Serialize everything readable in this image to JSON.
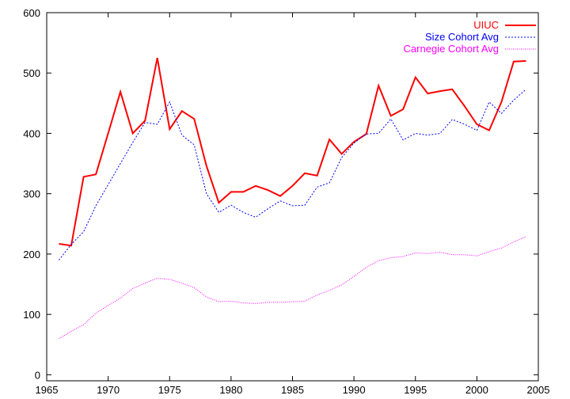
{
  "chart_data": {
    "type": "line",
    "title": "",
    "xlabel": "",
    "ylabel": "",
    "xlim": [
      1965,
      2005
    ],
    "ylim": [
      -10,
      600
    ],
    "xticks": [
      1965,
      1970,
      1975,
      1980,
      1985,
      1990,
      1995,
      2000,
      2005
    ],
    "yticks": [
      0,
      100,
      200,
      300,
      400,
      500,
      600
    ],
    "grid": false,
    "legend_position": "top-right",
    "x": [
      1966,
      1967,
      1968,
      1969,
      1970,
      1971,
      1972,
      1973,
      1974,
      1975,
      1976,
      1977,
      1978,
      1979,
      1980,
      1981,
      1982,
      1983,
      1984,
      1985,
      1986,
      1987,
      1988,
      1989,
      1990,
      1991,
      1992,
      1993,
      1994,
      1995,
      1996,
      1997,
      1998,
      1999,
      2000,
      2001,
      2002,
      2003,
      2004
    ],
    "series": [
      {
        "name": "UIUC",
        "color": "#ff0000",
        "style": "solid",
        "values": [
          217,
          214,
          328,
          332,
          400,
          469,
          400,
          421,
          525,
          407,
          437,
          424,
          346,
          285,
          303,
          303,
          313,
          306,
          296,
          313,
          334,
          330,
          390,
          366,
          386,
          399,
          479,
          429,
          440,
          493,
          466,
          470,
          473,
          445,
          415,
          405,
          452,
          519,
          520
        ]
      },
      {
        "name": "Size Cohort Avg",
        "color": "#0000ff",
        "style": "dashed",
        "values": [
          190,
          216,
          237,
          280,
          315,
          350,
          385,
          418,
          415,
          452,
          397,
          381,
          300,
          269,
          281,
          269,
          261,
          275,
          288,
          280,
          281,
          311,
          318,
          360,
          384,
          399,
          400,
          424,
          389,
          400,
          397,
          400,
          423,
          415,
          405,
          452,
          433,
          455,
          473
        ]
      },
      {
        "name": "Carnegie Cohort Avg",
        "color": "#ff00ff",
        "style": "dotted",
        "values": [
          60,
          72,
          83,
          102,
          115,
          127,
          143,
          152,
          160,
          158,
          152,
          144,
          129,
          121,
          122,
          119,
          118,
          120,
          120,
          121,
          122,
          132,
          140,
          149,
          163,
          178,
          189,
          194,
          196,
          202,
          201,
          203,
          199,
          199,
          197,
          204,
          210,
          220,
          229
        ]
      }
    ]
  }
}
